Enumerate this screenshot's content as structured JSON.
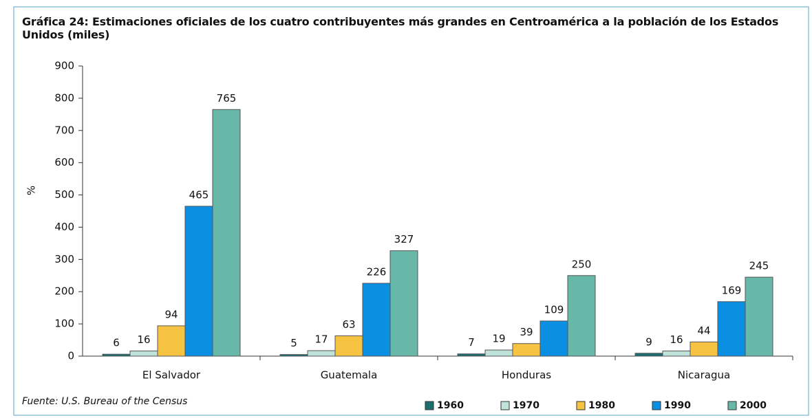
{
  "chart_data": {
    "type": "bar",
    "title": "Gráfica 24: Estimaciones oficiales de los cuatro contribuyentes más grandes en Centroamérica a la población de los Estados Unidos (miles)",
    "y_label": "%",
    "source": "Fuente: U.S. Bureau of the Census",
    "categories": [
      "El Salvador",
      "Guatemala",
      "Honduras",
      "Nicaragua"
    ],
    "series": [
      {
        "name": "1960",
        "color": "#1b6f70",
        "values": [
          6,
          5,
          7,
          9
        ]
      },
      {
        "name": "1970",
        "color": "#bfe3da",
        "values": [
          16,
          17,
          19,
          16
        ]
      },
      {
        "name": "1980",
        "color": "#f6c342",
        "values": [
          94,
          63,
          39,
          44
        ]
      },
      {
        "name": "1990",
        "color": "#0b8fe2",
        "values": [
          465,
          226,
          109,
          169
        ]
      },
      {
        "name": "2000",
        "color": "#68b8a9",
        "values": [
          765,
          327,
          250,
          245
        ]
      }
    ],
    "ylim": [
      0,
      900
    ],
    "yticks": [
      0,
      100,
      200,
      300,
      400,
      500,
      600,
      700,
      800,
      900
    ],
    "legend": "bottom-right"
  }
}
